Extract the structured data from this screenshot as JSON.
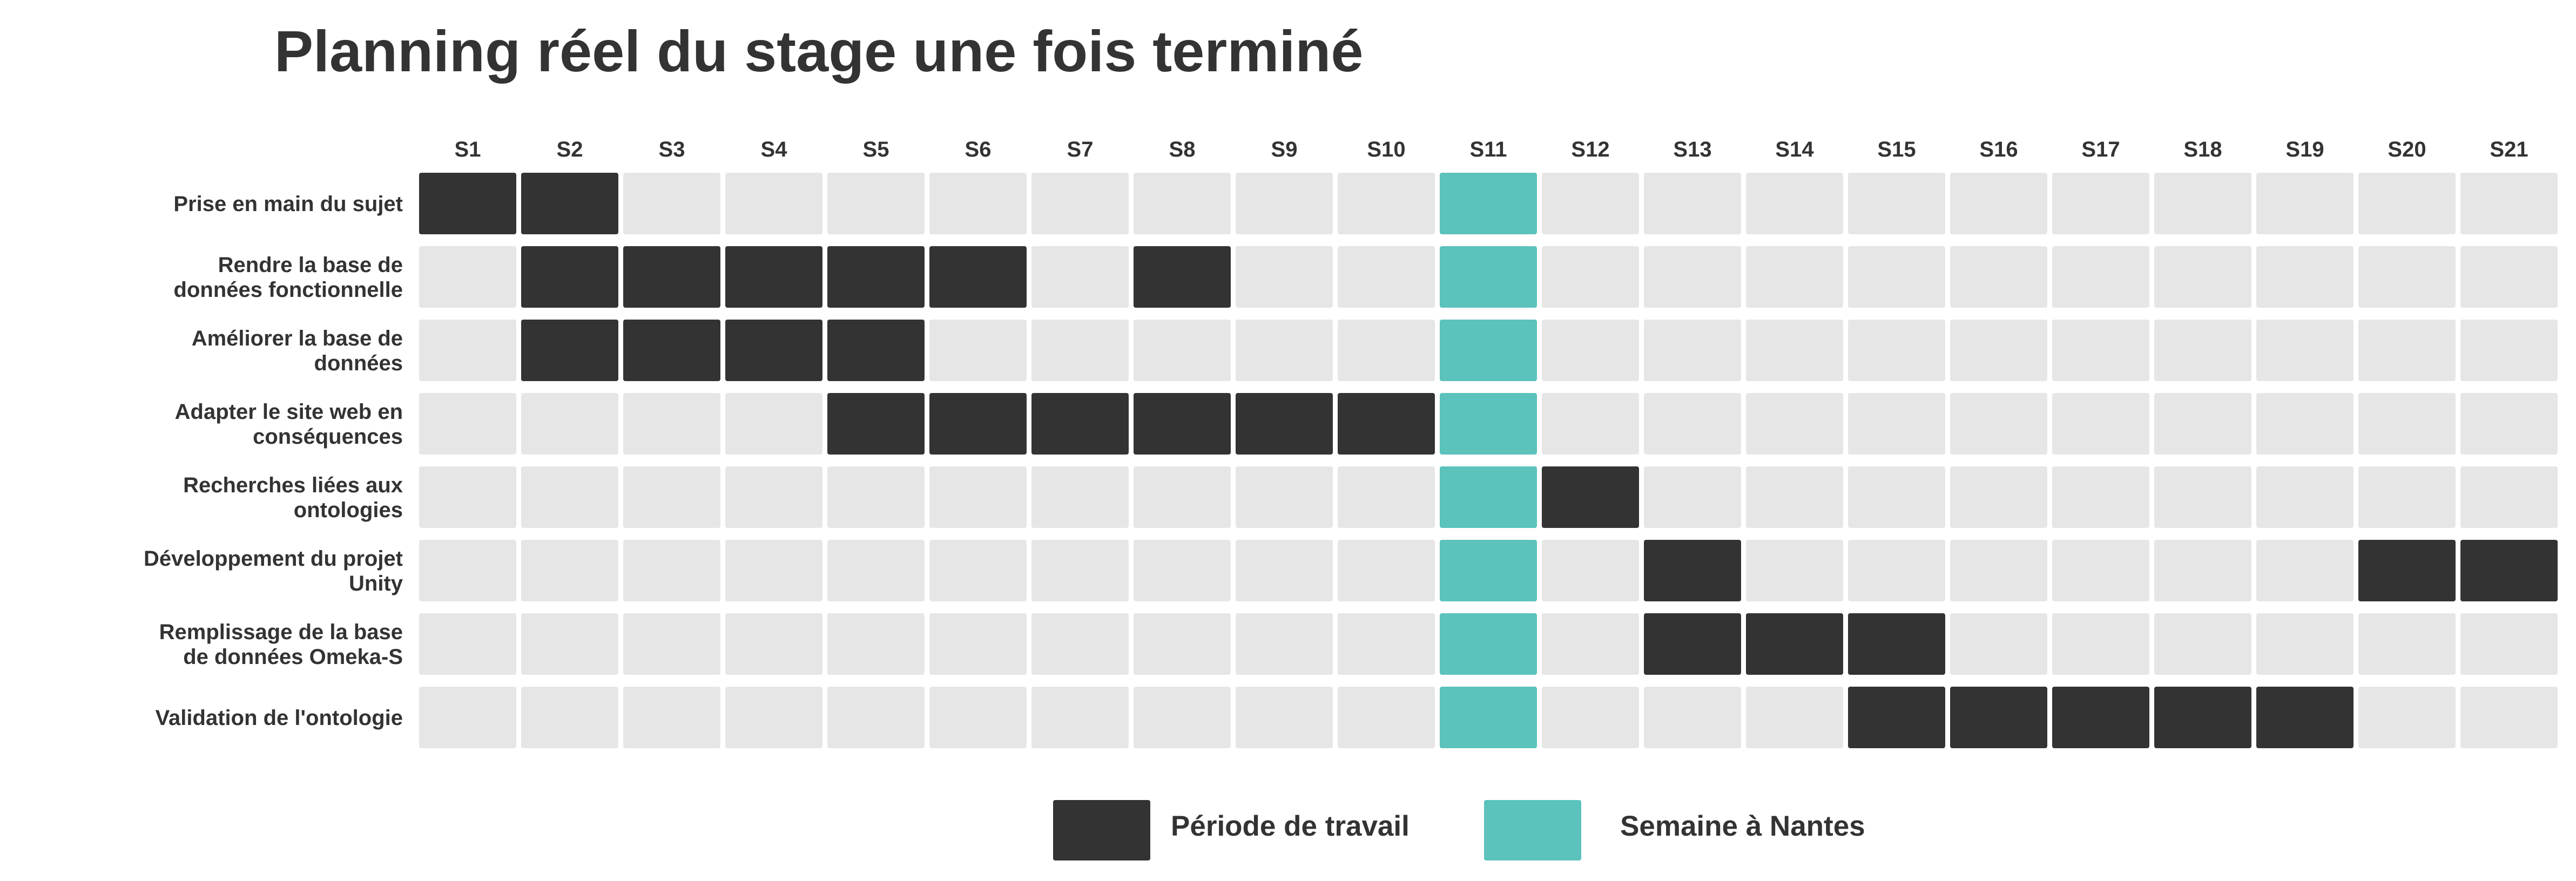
{
  "colors": {
    "work": "#333333",
    "nantes": "#5bc2bc",
    "empty": "#e6e6e6",
    "text": "#333333",
    "background": "#ffffff"
  },
  "chart_data": {
    "type": "heatmap",
    "title": "Planning réel du stage une fois terminé",
    "weeks": [
      "S1",
      "S2",
      "S3",
      "S4",
      "S5",
      "S6",
      "S7",
      "S8",
      "S9",
      "S10",
      "S11",
      "S12",
      "S13",
      "S14",
      "S15",
      "S16",
      "S17",
      "S18",
      "S19",
      "S20",
      "S21"
    ],
    "nantes_week": "S11",
    "tasks": [
      {
        "label": [
          "Prise en main du sujet"
        ],
        "work_weeks": [
          "S1",
          "S2"
        ]
      },
      {
        "label": [
          "Rendre la base de",
          "données fonctionnelle"
        ],
        "work_weeks": [
          "S2",
          "S3",
          "S4",
          "S5",
          "S6",
          "S8"
        ]
      },
      {
        "label": [
          "Améliorer la base de",
          "données"
        ],
        "work_weeks": [
          "S2",
          "S3",
          "S4",
          "S5"
        ]
      },
      {
        "label": [
          "Adapter le site web en",
          "conséquences"
        ],
        "work_weeks": [
          "S5",
          "S6",
          "S7",
          "S8",
          "S9",
          "S10"
        ]
      },
      {
        "label": [
          "Recherches liées aux",
          "ontologies"
        ],
        "work_weeks": [
          "S12"
        ]
      },
      {
        "label": [
          "Développement du projet",
          "Unity"
        ],
        "work_weeks": [
          "S13",
          "S20",
          "S21"
        ]
      },
      {
        "label": [
          "Remplissage de la base",
          "de données Omeka-S"
        ],
        "work_weeks": [
          "S13",
          "S14",
          "S15"
        ]
      },
      {
        "label": [
          "Validation de l'ontologie"
        ],
        "work_weeks": [
          "S15",
          "S16",
          "S17",
          "S18",
          "S19"
        ]
      }
    ],
    "legend": [
      {
        "key": "work",
        "label": "Période de travail"
      },
      {
        "key": "nantes",
        "label": "Semaine à Nantes"
      }
    ]
  }
}
